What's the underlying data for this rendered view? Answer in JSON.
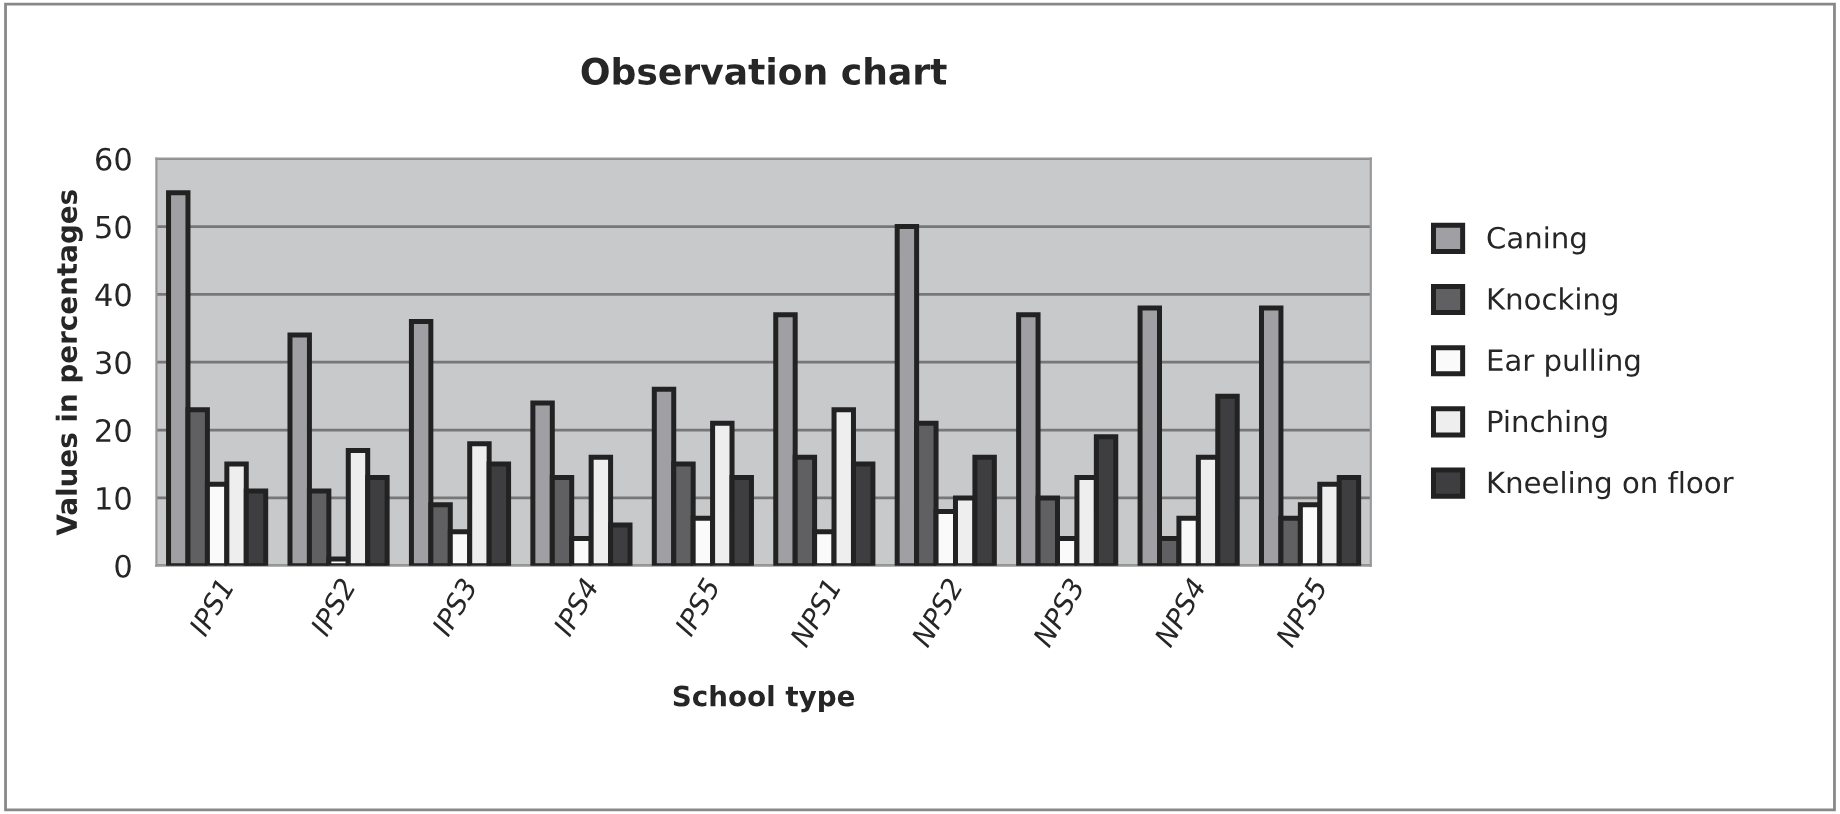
{
  "chart_data": {
    "type": "bar",
    "title": "Observation chart",
    "xlabel": "School type",
    "ylabel": "Values in percentages",
    "categories": [
      "IPS1",
      "IPS2",
      "IPS3",
      "IPS4",
      "IPS5",
      "NPS1",
      "NPS2",
      "NPS3",
      "NPS4",
      "NPS5"
    ],
    "series": [
      {
        "name": "Caning",
        "color": "#a0a0a4",
        "values": [
          55,
          34,
          36,
          24,
          26,
          37,
          50,
          37,
          38,
          38
        ]
      },
      {
        "name": "Knocking",
        "color": "#606062",
        "values": [
          23,
          11,
          9,
          13,
          15,
          16,
          21,
          10,
          4,
          7
        ]
      },
      {
        "name": "Ear pulling",
        "color": "#fafafa",
        "values": [
          12,
          1,
          5,
          4,
          7,
          5,
          8,
          4,
          7,
          9
        ]
      },
      {
        "name": "Pinching",
        "color": "#eeeeee",
        "values": [
          15,
          17,
          18,
          16,
          21,
          23,
          10,
          13,
          16,
          12
        ]
      },
      {
        "name": "Kneeling on floor",
        "color": "#3e3e40",
        "values": [
          11,
          13,
          15,
          6,
          13,
          15,
          16,
          19,
          25,
          13
        ]
      }
    ],
    "ylim": [
      0,
      60
    ],
    "yticks": [
      0,
      10,
      20,
      30,
      40,
      50,
      60
    ],
    "grid": "y",
    "legend": "right"
  }
}
